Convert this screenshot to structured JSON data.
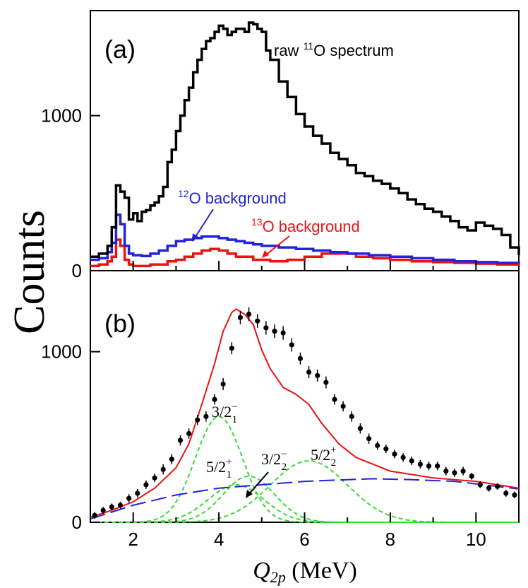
{
  "chart_data": [
    {
      "panel": "(a)",
      "type": "line",
      "step": true,
      "ylabel": "Counts",
      "xlim": [
        1,
        11
      ],
      "ylim": [
        0,
        1650
      ],
      "yticks": [
        "0",
        "1000"
      ],
      "series": [
        {
          "name": "raw ¹¹O spectrum",
          "label_parts": [
            "raw ",
            "11",
            "O spectrum"
          ],
          "color": "#000000",
          "x": [
            1.0,
            1.2,
            1.4,
            1.5,
            1.6,
            1.7,
            1.8,
            1.9,
            2.0,
            2.1,
            2.2,
            2.3,
            2.4,
            2.5,
            2.6,
            2.7,
            2.8,
            2.9,
            3.0,
            3.1,
            3.2,
            3.3,
            3.4,
            3.5,
            3.6,
            3.7,
            3.8,
            3.9,
            4.0,
            4.1,
            4.2,
            4.3,
            4.4,
            4.5,
            4.6,
            4.7,
            4.8,
            4.9,
            5.0,
            5.1,
            5.2,
            5.4,
            5.6,
            5.8,
            6.0,
            6.2,
            6.4,
            6.6,
            6.8,
            7.0,
            7.2,
            7.4,
            7.6,
            7.8,
            8.0,
            8.2,
            8.4,
            8.6,
            8.8,
            9.0,
            9.2,
            9.4,
            9.6,
            9.8,
            10.0,
            10.2,
            10.4,
            10.6,
            10.8,
            11.0
          ],
          "values": [
            90,
            110,
            160,
            280,
            550,
            510,
            470,
            330,
            370,
            320,
            380,
            390,
            420,
            440,
            480,
            540,
            700,
            780,
            900,
            1000,
            1100,
            1180,
            1280,
            1360,
            1430,
            1480,
            1500,
            1540,
            1580,
            1560,
            1520,
            1540,
            1560,
            1560,
            1540,
            1600,
            1590,
            1560,
            1540,
            1420,
            1360,
            1220,
            1120,
            1010,
            930,
            870,
            820,
            760,
            720,
            680,
            630,
            610,
            580,
            560,
            530,
            500,
            460,
            430,
            400,
            380,
            350,
            320,
            280,
            260,
            310,
            290,
            270,
            230,
            150,
            100
          ]
        },
        {
          "name": "¹²O background",
          "label_parts": [
            "12",
            "O background"
          ],
          "color": "#2222dd",
          "x": [
            1.0,
            1.2,
            1.4,
            1.5,
            1.6,
            1.7,
            1.8,
            1.9,
            2.0,
            2.2,
            2.4,
            2.6,
            2.8,
            3.0,
            3.2,
            3.4,
            3.6,
            3.8,
            4.0,
            4.2,
            4.4,
            4.6,
            4.8,
            5.0,
            5.4,
            5.8,
            6.2,
            6.6,
            7.0,
            7.5,
            8.0,
            8.5,
            9.0,
            9.5,
            10.0,
            10.5,
            11.0
          ],
          "values": [
            70,
            80,
            120,
            180,
            360,
            300,
            160,
            110,
            100,
            95,
            110,
            130,
            160,
            190,
            200,
            210,
            220,
            220,
            210,
            200,
            190,
            180,
            170,
            160,
            150,
            140,
            130,
            120,
            110,
            100,
            90,
            80,
            70,
            60,
            55,
            50,
            45
          ]
        },
        {
          "name": "¹³O background",
          "label_parts": [
            "13",
            "O background"
          ],
          "color": "#ee1111",
          "x": [
            1.0,
            1.2,
            1.4,
            1.5,
            1.6,
            1.7,
            1.8,
            1.9,
            2.0,
            2.4,
            2.8,
            3.0,
            3.2,
            3.4,
            3.6,
            3.8,
            4.0,
            4.2,
            4.4,
            4.8,
            5.2,
            5.6,
            6.0,
            6.4,
            6.8,
            7.2,
            7.6,
            8.0,
            8.5,
            9.0,
            9.5,
            10.0,
            10.5,
            11.0
          ],
          "values": [
            30,
            40,
            60,
            90,
            200,
            160,
            70,
            40,
            30,
            40,
            60,
            70,
            90,
            110,
            130,
            140,
            130,
            110,
            90,
            70,
            60,
            70,
            90,
            110,
            110,
            90,
            80,
            70,
            60,
            55,
            50,
            45,
            40,
            35
          ]
        }
      ],
      "annotations": [
        {
          "text": "(a)"
        }
      ]
    },
    {
      "panel": "(b)",
      "type": "scatter",
      "xlabel": "Q2p (MeV)",
      "xlabel_parts": [
        "Q",
        "2p",
        " (MeV)"
      ],
      "ylabel": "Counts",
      "xlim": [
        1,
        11
      ],
      "ylim": [
        0,
        1450
      ],
      "xticks": [
        "2",
        "4",
        "6",
        "8",
        "10"
      ],
      "yticks": [
        "0",
        "1000"
      ],
      "data_points": {
        "name": "data",
        "color": "#000000",
        "x": [
          1.1,
          1.3,
          1.5,
          1.7,
          1.9,
          2.1,
          2.3,
          2.5,
          2.7,
          2.9,
          3.1,
          3.3,
          3.5,
          3.7,
          3.9,
          4.1,
          4.3,
          4.5,
          4.7,
          4.9,
          5.1,
          5.3,
          5.5,
          5.7,
          5.9,
          6.1,
          6.3,
          6.5,
          6.7,
          6.9,
          7.1,
          7.3,
          7.5,
          7.7,
          7.9,
          8.1,
          8.3,
          8.5,
          8.7,
          8.9,
          9.1,
          9.3,
          9.5,
          9.7,
          9.9,
          10.1,
          10.3,
          10.5,
          10.7,
          10.9
        ],
        "y": [
          40,
          70,
          90,
          100,
          140,
          170,
          220,
          260,
          310,
          370,
          480,
          520,
          600,
          620,
          720,
          810,
          1020,
          1200,
          1220,
          1180,
          1140,
          1120,
          1110,
          1040,
          960,
          880,
          860,
          820,
          720,
          680,
          620,
          550,
          490,
          450,
          430,
          400,
          380,
          360,
          340,
          330,
          330,
          300,
          290,
          300,
          270,
          220,
          200,
          210,
          170,
          160
        ],
        "err": [
          20,
          20,
          20,
          20,
          25,
          25,
          25,
          25,
          30,
          30,
          30,
          30,
          30,
          30,
          30,
          35,
          35,
          40,
          40,
          40,
          40,
          40,
          40,
          40,
          35,
          35,
          35,
          35,
          30,
          30,
          30,
          30,
          30,
          25,
          25,
          25,
          25,
          25,
          25,
          25,
          25,
          25,
          25,
          25,
          20,
          20,
          20,
          20,
          20,
          20
        ]
      },
      "fit": {
        "name": "total fit",
        "color": "#ee1111",
        "x": [
          1.0,
          1.5,
          2.0,
          2.5,
          3.0,
          3.3,
          3.6,
          3.9,
          4.1,
          4.3,
          4.4,
          4.6,
          4.8,
          5.0,
          5.2,
          5.5,
          5.8,
          6.1,
          6.4,
          6.8,
          7.2,
          7.6,
          8.0,
          8.5,
          9.0,
          9.5,
          10.0,
          10.5,
          11.0
        ],
        "y": [
          30,
          70,
          120,
          200,
          320,
          460,
          690,
          930,
          1120,
          1230,
          1250,
          1220,
          1160,
          1010,
          900,
          790,
          750,
          690,
          580,
          460,
          380,
          340,
          300,
          280,
          260,
          250,
          240,
          220,
          200
        ]
      },
      "background": {
        "name": "background",
        "color": "#2222dd",
        "x": [
          1.0,
          2.0,
          3.0,
          4.0,
          5.0,
          6.0,
          7.0,
          7.6,
          8.5,
          9.5,
          10.5,
          11.0
        ],
        "y": [
          20,
          100,
          160,
          200,
          220,
          240,
          250,
          255,
          250,
          240,
          210,
          195
        ]
      },
      "components": [
        {
          "name": "3/2⁻₁",
          "color": "#33dd33",
          "center": 4.0,
          "height": 620,
          "width": 0.55
        },
        {
          "name": "3/2⁻₂",
          "color": "#33dd33",
          "center": 4.7,
          "height": 270,
          "width": 0.6
        },
        {
          "name": "5/2⁺₁",
          "color": "#33dd33",
          "center": 4.4,
          "height": 220,
          "width": 0.65
        },
        {
          "name": "5/2⁺₂",
          "color": "#33dd33",
          "center": 6.1,
          "height": 360,
          "width": 0.9
        }
      ],
      "state_labels": [
        {
          "base": "3/2",
          "sup": "−",
          "sub": "1"
        },
        {
          "base": "3/2",
          "sup": "−",
          "sub": "2"
        },
        {
          "base": "5/2",
          "sup": "+",
          "sub": "1"
        },
        {
          "base": "5/2",
          "sup": "+",
          "sub": "2"
        }
      ],
      "annotations": [
        {
          "text": "(b)"
        }
      ]
    }
  ]
}
